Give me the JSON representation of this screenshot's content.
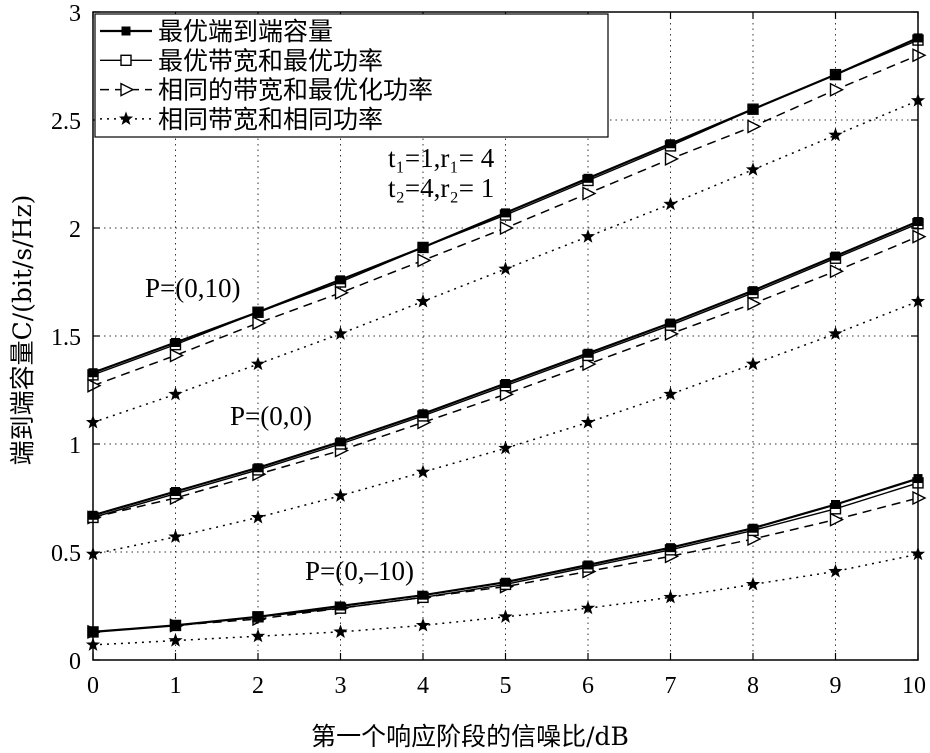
{
  "chart_data": {
    "type": "line",
    "xlabel": "第一个响应阶段的信噪比/dB",
    "ylabel": "端到端容量C/(bit/s/Hz)",
    "x": [
      0,
      1,
      2,
      3,
      4,
      5,
      6,
      7,
      8,
      9,
      10
    ],
    "xlim": [
      0,
      10
    ],
    "ylim": [
      0,
      3
    ],
    "xticks": [
      "0",
      "1",
      "2",
      "3",
      "4",
      "5",
      "6",
      "7",
      "8",
      "9",
      "10"
    ],
    "yticks": [
      "0",
      "0.5",
      "1",
      "1.5",
      "2",
      "2.5",
      "3"
    ],
    "grid": true,
    "grid_style": "dotted",
    "legend": {
      "position": "top-left"
    },
    "color": "#000000",
    "groups": [
      "P=(0,10)",
      "P=(0,0)",
      "P=(0,–10)"
    ],
    "series": [
      {
        "name": "最优端到端容量",
        "marker": "filled-square",
        "linestyle": "solid",
        "values": [
          [
            1.33,
            1.47,
            1.61,
            1.76,
            1.91,
            2.07,
            2.23,
            2.39,
            2.55,
            2.71,
            2.88
          ],
          [
            0.67,
            0.78,
            0.89,
            1.01,
            1.14,
            1.28,
            1.42,
            1.56,
            1.71,
            1.87,
            2.03
          ],
          [
            0.13,
            0.16,
            0.2,
            0.25,
            0.3,
            0.36,
            0.44,
            0.52,
            0.61,
            0.72,
            0.84
          ]
        ]
      },
      {
        "name": "最优带宽和最优功率",
        "marker": "open-square",
        "linestyle": "solid",
        "values": [
          [
            1.32,
            1.46,
            1.61,
            1.75,
            1.91,
            2.06,
            2.22,
            2.38,
            2.55,
            2.71,
            2.87
          ],
          [
            0.66,
            0.77,
            0.88,
            1.0,
            1.13,
            1.27,
            1.41,
            1.55,
            1.7,
            1.86,
            2.02
          ],
          [
            0.13,
            0.16,
            0.2,
            0.24,
            0.29,
            0.35,
            0.43,
            0.51,
            0.6,
            0.7,
            0.82
          ]
        ]
      },
      {
        "name": "相同的带宽和最优化功率",
        "marker": "triangle-right",
        "linestyle": "dashed",
        "values": [
          [
            1.27,
            1.41,
            1.56,
            1.7,
            1.85,
            2.0,
            2.16,
            2.32,
            2.47,
            2.64,
            2.8
          ],
          [
            0.66,
            0.75,
            0.86,
            0.97,
            1.1,
            1.23,
            1.37,
            1.51,
            1.65,
            1.8,
            1.96
          ],
          [
            0.13,
            0.16,
            0.19,
            0.24,
            0.29,
            0.34,
            0.41,
            0.48,
            0.56,
            0.65,
            0.75
          ]
        ]
      },
      {
        "name": "相同带宽和相同功率",
        "marker": "star",
        "linestyle": "dotted",
        "values": [
          [
            1.1,
            1.23,
            1.37,
            1.51,
            1.66,
            1.81,
            1.96,
            2.11,
            2.27,
            2.43,
            2.59
          ],
          [
            0.49,
            0.57,
            0.66,
            0.76,
            0.87,
            0.98,
            1.1,
            1.23,
            1.37,
            1.51,
            1.66
          ],
          [
            0.07,
            0.09,
            0.11,
            0.13,
            0.16,
            0.2,
            0.24,
            0.29,
            0.35,
            0.41,
            0.49
          ]
        ]
      }
    ],
    "annotations": [
      "t₁=1,r₁= 4",
      "t₂=4,r₂= 1"
    ]
  }
}
